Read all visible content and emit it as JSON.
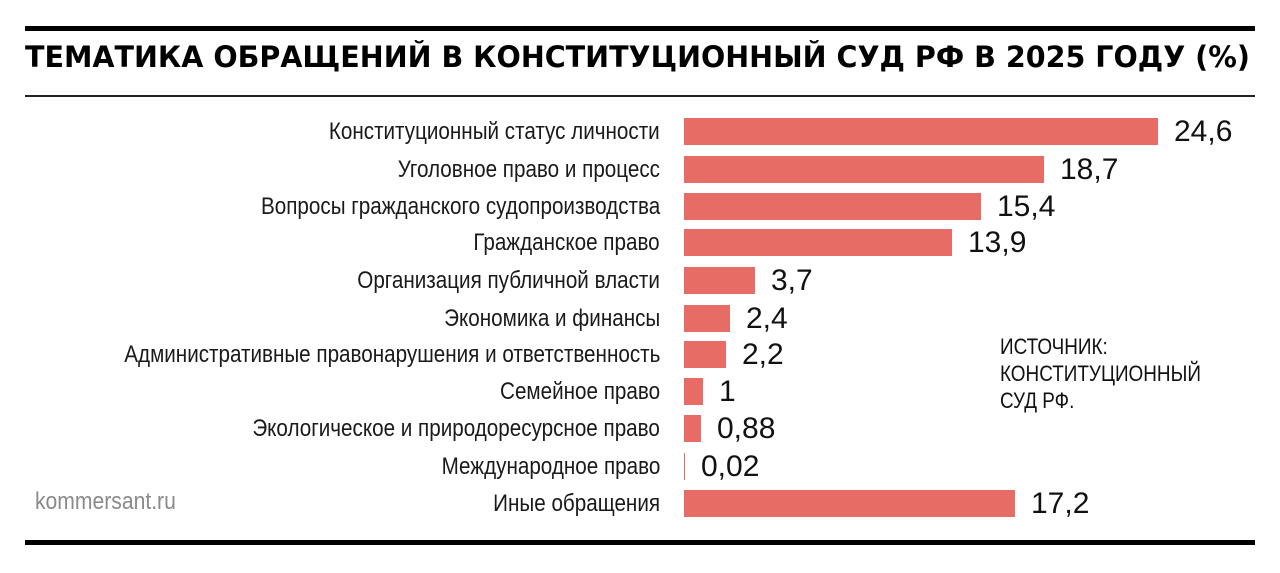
{
  "header": {
    "title": "ТЕМАТИКА ОБРАЩЕНИЙ В КОНСТИТУЦИОННЫЙ СУД РФ В 2025 ГОДУ (%)"
  },
  "source": {
    "line1": "ИСТОЧНИК:",
    "line2": "КОНСТИТУЦИОННЫЙ",
    "line3": "СУД РФ."
  },
  "brand": {
    "text": "kommersant.ru"
  },
  "colors": {
    "bar": "#e86c66",
    "text": "#111111",
    "brand": "#8a8a8a",
    "rules": "#000000"
  },
  "rows": [
    {
      "label": "Конституционный статус личности",
      "value_text": "24,6"
    },
    {
      "label": "Уголовное право и процесс",
      "value_text": "18,7"
    },
    {
      "label": "Вопросы гражданского судопроизводства",
      "value_text": "15,4"
    },
    {
      "label": "Гражданское право",
      "value_text": "13,9"
    },
    {
      "label": "Организация публичной власти",
      "value_text": "3,7"
    },
    {
      "label": "Экономика и финансы",
      "value_text": "2,4"
    },
    {
      "label": "Административные правонарушения и ответственность",
      "value_text": "2,2"
    },
    {
      "label": "Семейное право",
      "value_text": "1"
    },
    {
      "label": "Экологическое и природоресурсное право",
      "value_text": "0,88"
    },
    {
      "label": "Международное право",
      "value_text": "0,02"
    },
    {
      "label": "Иные обращения",
      "value_text": "17,2"
    }
  ],
  "chart_data": {
    "type": "bar",
    "orientation": "horizontal",
    "title": "ТЕМАТИКА ОБРАЩЕНИЙ В КОНСТИТУЦИОННЫЙ СУД РФ В 2025 ГОДУ (%)",
    "xlabel": "",
    "ylabel": "",
    "categories": [
      "Конституционный статус личности",
      "Уголовное право и процесс",
      "Вопросы гражданского судопроизводства",
      "Гражданское право",
      "Организация публичной власти",
      "Экономика и финансы",
      "Административные правонарушения и ответственность",
      "Семейное право",
      "Экологическое и природоресурсное право",
      "Международное право",
      "Иные обращения"
    ],
    "values": [
      24.6,
      18.7,
      15.4,
      13.9,
      3.7,
      2.4,
      2.2,
      1,
      0.88,
      0.02,
      17.2
    ],
    "data_labels": [
      "24,6",
      "18,7",
      "15,4",
      "13,9",
      "3,7",
      "2,4",
      "2,2",
      "1",
      "0,88",
      "0,02",
      "17,2"
    ],
    "unit": "%",
    "xlim": [
      0,
      24.6
    ],
    "grid": false,
    "legend": null,
    "annotations": [
      "ИСТОЧНИК: КОНСТИТУЦИОННЫЙ СУД РФ.",
      "kommersant.ru"
    ],
    "bar_color": "#e86c66"
  }
}
